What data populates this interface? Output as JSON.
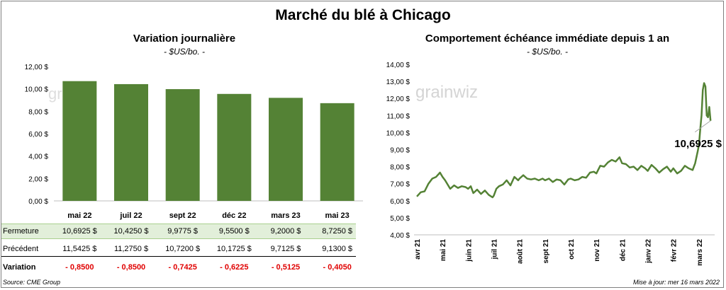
{
  "title": "Marché du blé à Chicago",
  "source": "Source: CME Group",
  "updated": "Mise à jour: mer 16 mars 2022",
  "watermark": "grainwiz",
  "colors": {
    "bar": "#548235",
    "line": "#548235",
    "neg": "#e00000"
  },
  "chart_data": [
    {
      "type": "bar",
      "title": "Variation journalière",
      "subtitle": "- $US/bo. -",
      "categories": [
        "mai 22",
        "juil 22",
        "sept 22",
        "déc 22",
        "mars 23",
        "mai 23"
      ],
      "values": [
        10.6925,
        10.425,
        9.9775,
        9.55,
        9.2,
        8.725
      ],
      "ylim": [
        0,
        12
      ],
      "yticks": [
        "0,00 $",
        "2,00 $",
        "4,00 $",
        "6,00 $",
        "8,00 $",
        "10,00 $",
        "12,00 $"
      ],
      "table": {
        "rows": [
          {
            "label": "Fermeture",
            "values": [
              "10,6925  $",
              "10,4250  $",
              "9,9775  $",
              "9,5500  $",
              "9,2000  $",
              "8,7250  $"
            ]
          },
          {
            "label": "Précédent",
            "values": [
              "11,5425  $",
              "11,2750  $",
              "10,7200  $",
              "10,1725  $",
              "9,7125  $",
              "9,1300  $"
            ]
          },
          {
            "label": "Variation",
            "values": [
              "- 0,8500",
              "- 0,8500",
              "- 0,7425",
              "- 0,6225",
              "- 0,5125",
              "- 0,4050"
            ]
          }
        ]
      }
    },
    {
      "type": "line",
      "title": "Comportement  échéance immédiate depuis 1 an",
      "subtitle": "- $US/bo. -",
      "ylim": [
        4,
        14
      ],
      "yticks": [
        "4,00 $",
        "5,00 $",
        "6,00 $",
        "7,00 $",
        "8,00 $",
        "9,00 $",
        "10,00 $",
        "11,00 $",
        "12,00 $",
        "13,00 $",
        "14,00 $"
      ],
      "xticks": [
        "avr 21",
        "mai 21",
        "juin 21",
        "juil 21",
        "août 21",
        "sept 21",
        "oct 21",
        "nov 21",
        "déc 21",
        "janv 22",
        "févr 22",
        "mars 22"
      ],
      "annotation": "10,6925 $",
      "series": [
        {
          "x": [
            0,
            0.15,
            0.3,
            0.45,
            0.6,
            0.75,
            0.9,
            1.0,
            1.1,
            1.2,
            1.3,
            1.45,
            1.6,
            1.75,
            1.9,
            2.0,
            2.1,
            2.2,
            2.35,
            2.5,
            2.65,
            2.8,
            2.95,
            3.0,
            3.1,
            3.2,
            3.35,
            3.5,
            3.65,
            3.8,
            3.95,
            4.0,
            4.15,
            4.3,
            4.45,
            4.6,
            4.75,
            4.9,
            5.0,
            5.15,
            5.3,
            5.45,
            5.6,
            5.75,
            5.9,
            6.0,
            6.15,
            6.3,
            6.45,
            6.6,
            6.75,
            6.9,
            7.0,
            7.15,
            7.3,
            7.45,
            7.6,
            7.75,
            7.9,
            8.0,
            8.15,
            8.3,
            8.45,
            8.6,
            8.75,
            8.9,
            9.0,
            9.15,
            9.3,
            9.45,
            9.6,
            9.75,
            9.9,
            10.0,
            10.15,
            10.3,
            10.45,
            10.6,
            10.75,
            10.85,
            10.95,
            11.0,
            11.05,
            11.1,
            11.15,
            11.2,
            11.25,
            11.3,
            11.35,
            11.4,
            11.45
          ],
          "y": [
            6.25,
            6.5,
            6.55,
            7.0,
            7.3,
            7.4,
            7.65,
            7.4,
            7.2,
            6.95,
            6.7,
            6.9,
            6.75,
            6.85,
            6.8,
            6.7,
            6.85,
            6.45,
            6.65,
            6.4,
            6.6,
            6.35,
            6.2,
            6.3,
            6.7,
            6.85,
            6.95,
            7.2,
            6.9,
            7.4,
            7.2,
            7.3,
            7.5,
            7.3,
            7.25,
            7.3,
            7.2,
            7.3,
            7.2,
            7.3,
            7.1,
            7.25,
            7.2,
            6.95,
            7.25,
            7.3,
            7.2,
            7.25,
            7.4,
            7.35,
            7.65,
            7.7,
            7.6,
            8.05,
            8.0,
            8.25,
            8.4,
            8.3,
            8.55,
            8.2,
            8.15,
            7.95,
            8.0,
            7.8,
            8.05,
            7.9,
            7.75,
            8.1,
            7.9,
            7.65,
            7.85,
            8.0,
            7.7,
            7.9,
            7.6,
            7.75,
            8.05,
            7.9,
            7.8,
            8.2,
            8.9,
            9.3,
            10.2,
            11.0,
            12.5,
            12.9,
            12.7,
            11.0,
            10.9,
            11.5,
            10.69
          ]
        }
      ]
    }
  ]
}
